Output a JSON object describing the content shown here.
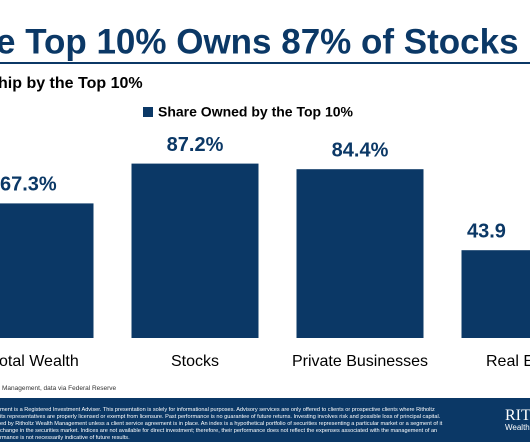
{
  "chart_data": {
    "type": "bar",
    "title": "e Top 10% Owns 87% of Stocks",
    "subtitle": "hip by the Top 10%",
    "series": [
      {
        "name": "Share Owned by the Top 10%",
        "color": "#0b3866",
        "values": [
          67.3,
          87.2,
          84.4,
          43.9
        ],
        "value_labels": [
          "67.3%",
          "87.2%",
          "84.4%",
          "43.9"
        ]
      }
    ],
    "categories": [
      "otal Wealth",
      "Stocks",
      "Private Businesses",
      "Real E"
    ],
    "ylim": [
      0,
      100
    ],
    "source": "Management, data via Federal Reserve",
    "disclaimer": [
      "ment is a Registered Investment Adviser. This presentation is solely for informational purposes. Advisory services are only offered to clients or prospective clients where Ritholtz",
      " its representatives are properly licensed or exempt from licensure. Past performance is no guarantee of future returns. Investing involves risk and possible loss of principal capital.",
      "ed by Ritholtz Wealth Management unless a client service agreement is in place. An index is a hypothetical portfolio of securities representing a particular market or a segment of it",
      "change in the securities market. Indices are not available for direct investment; therefore, their performance does not reflect the expenses associated with the management of an",
      "rmance is not necessarily indicative of future results."
    ],
    "logo": [
      "RIT",
      "Wealth"
    ]
  }
}
